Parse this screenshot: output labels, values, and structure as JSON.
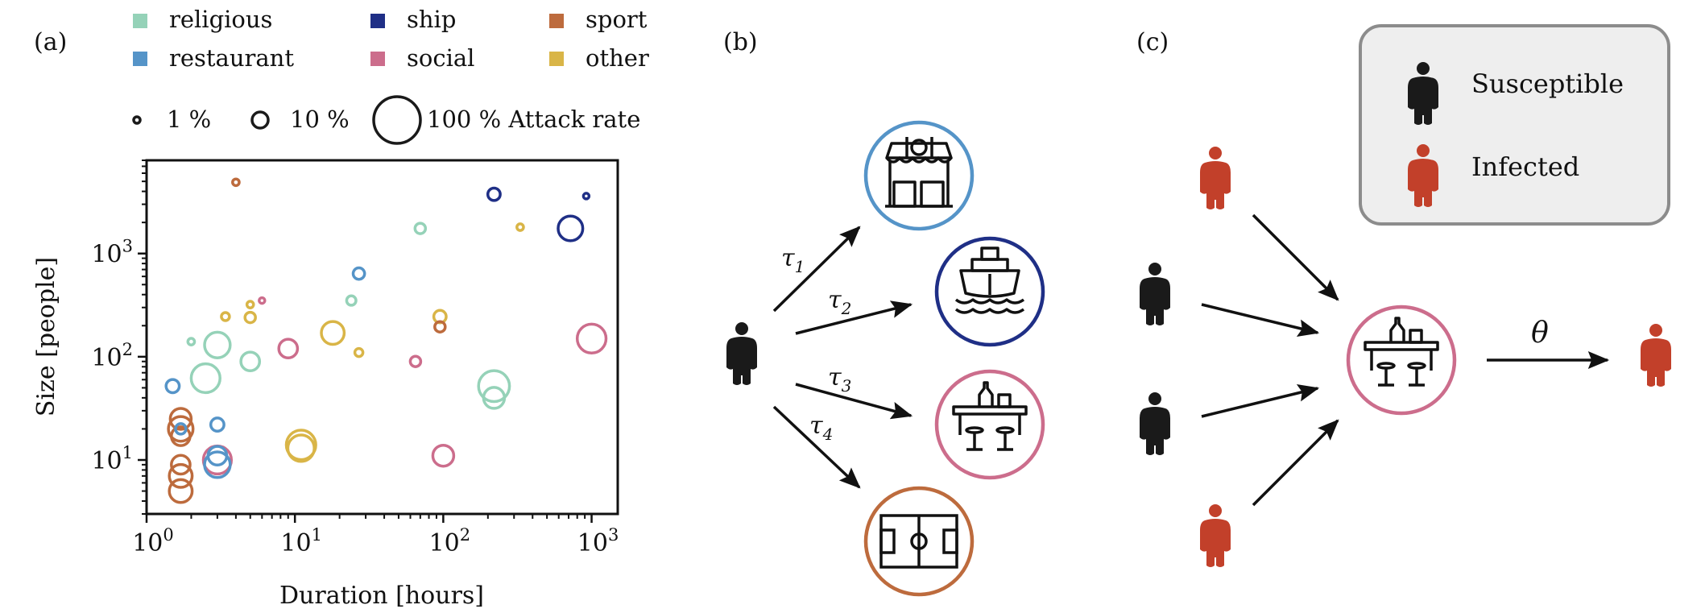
{
  "panels": {
    "a": {
      "label": "(a)"
    },
    "b": {
      "label": "(b)"
    },
    "c": {
      "label": "(c)"
    }
  },
  "legend_categories": [
    {
      "key": "religious",
      "label": "religious",
      "color": "#95d2b8"
    },
    {
      "key": "ship",
      "label": "ship",
      "color": "#1f2f86"
    },
    {
      "key": "sport",
      "label": "sport",
      "color": "#bd6b3d"
    },
    {
      "key": "restaurant",
      "label": "restaurant",
      "color": "#5594c8"
    },
    {
      "key": "social",
      "label": "social",
      "color": "#cc6d8c"
    },
    {
      "key": "other",
      "label": "other",
      "color": "#d9b547"
    }
  ],
  "size_legend": [
    {
      "value": 1,
      "label": "1 %"
    },
    {
      "value": 10,
      "label": "10 %"
    },
    {
      "value": 100,
      "label": "100 % Attack rate"
    }
  ],
  "chart_data": {
    "type": "scatter",
    "x_scale": "log",
    "y_scale": "log",
    "xlabel": "Duration [hours]",
    "ylabel": "Size [people]",
    "xlim": [
      1,
      1500
    ],
    "ylim": [
      3,
      8000
    ],
    "x_ticks": [
      {
        "value": 1,
        "base": "10",
        "exp": "0"
      },
      {
        "value": 10,
        "base": "10",
        "exp": "1"
      },
      {
        "value": 100,
        "base": "10",
        "exp": "2"
      },
      {
        "value": 1000,
        "base": "10",
        "exp": "3"
      }
    ],
    "y_ticks": [
      {
        "value": 10,
        "base": "10",
        "exp": "1"
      },
      {
        "value": 100,
        "base": "10",
        "exp": "2"
      },
      {
        "value": 1000,
        "base": "10",
        "exp": "3"
      }
    ],
    "size_encoding": "attack rate (%)",
    "points": [
      {
        "category": "sport",
        "x": 4,
        "y": 4900,
        "attack_rate": 2
      },
      {
        "category": "ship",
        "x": 220,
        "y": 3750,
        "attack_rate": 7
      },
      {
        "category": "ship",
        "x": 920,
        "y": 3600,
        "attack_rate": 1
      },
      {
        "category": "religious",
        "x": 70,
        "y": 1750,
        "attack_rate": 5
      },
      {
        "category": "other",
        "x": 330,
        "y": 1800,
        "attack_rate": 2
      },
      {
        "category": "ship",
        "x": 720,
        "y": 1750,
        "attack_rate": 28
      },
      {
        "category": "restaurant",
        "x": 27,
        "y": 640,
        "attack_rate": 6
      },
      {
        "category": "religious",
        "x": 24,
        "y": 350,
        "attack_rate": 4
      },
      {
        "category": "other",
        "x": 5,
        "y": 320,
        "attack_rate": 2
      },
      {
        "category": "social",
        "x": 6,
        "y": 350,
        "attack_rate": 1
      },
      {
        "category": "other",
        "x": 3.4,
        "y": 245,
        "attack_rate": 3
      },
      {
        "category": "other",
        "x": 5,
        "y": 240,
        "attack_rate": 5
      },
      {
        "category": "other",
        "x": 95,
        "y": 245,
        "attack_rate": 7
      },
      {
        "category": "sport",
        "x": 95,
        "y": 195,
        "attack_rate": 5
      },
      {
        "category": "other",
        "x": 18,
        "y": 170,
        "attack_rate": 24
      },
      {
        "category": "social",
        "x": 1000,
        "y": 150,
        "attack_rate": 38
      },
      {
        "category": "religious",
        "x": 2,
        "y": 140,
        "attack_rate": 2
      },
      {
        "category": "religious",
        "x": 3,
        "y": 130,
        "attack_rate": 30
      },
      {
        "category": "social",
        "x": 9,
        "y": 120,
        "attack_rate": 16
      },
      {
        "category": "other",
        "x": 27,
        "y": 110,
        "attack_rate": 3
      },
      {
        "category": "religious",
        "x": 5,
        "y": 90,
        "attack_rate": 16
      },
      {
        "category": "social",
        "x": 65,
        "y": 90,
        "attack_rate": 5
      },
      {
        "category": "religious",
        "x": 2.5,
        "y": 62,
        "attack_rate": 38
      },
      {
        "category": "religious",
        "x": 220,
        "y": 52,
        "attack_rate": 44
      },
      {
        "category": "restaurant",
        "x": 1.5,
        "y": 52,
        "attack_rate": 8
      },
      {
        "category": "religious",
        "x": 220,
        "y": 40,
        "attack_rate": 20
      },
      {
        "category": "sport",
        "x": 1.7,
        "y": 25,
        "attack_rate": 20
      },
      {
        "category": "sport",
        "x": 1.7,
        "y": 20,
        "attack_rate": 28
      },
      {
        "category": "sport",
        "x": 1.7,
        "y": 17,
        "attack_rate": 16
      },
      {
        "category": "restaurant",
        "x": 1.7,
        "y": 20,
        "attack_rate": 5
      },
      {
        "category": "restaurant",
        "x": 3,
        "y": 22,
        "attack_rate": 8
      },
      {
        "category": "other",
        "x": 11,
        "y": 14,
        "attack_rate": 40
      },
      {
        "category": "other",
        "x": 11,
        "y": 13,
        "attack_rate": 32
      },
      {
        "category": "social",
        "x": 3,
        "y": 10,
        "attack_rate": 36
      },
      {
        "category": "restaurant",
        "x": 3,
        "y": 11,
        "attack_rate": 16
      },
      {
        "category": "social",
        "x": 100,
        "y": 11,
        "attack_rate": 20
      },
      {
        "category": "restaurant",
        "x": 3,
        "y": 9,
        "attack_rate": 30
      },
      {
        "category": "sport",
        "x": 1.7,
        "y": 9,
        "attack_rate": 16
      },
      {
        "category": "sport",
        "x": 1.7,
        "y": 7,
        "attack_rate": 24
      },
      {
        "category": "sport",
        "x": 1.7,
        "y": 5,
        "attack_rate": 24
      }
    ]
  },
  "panel_b": {
    "taus": [
      {
        "symbol": "τ",
        "sub": "1"
      },
      {
        "symbol": "τ",
        "sub": "2"
      },
      {
        "symbol": "τ",
        "sub": "3"
      },
      {
        "symbol": "τ",
        "sub": "4"
      }
    ],
    "venues": [
      {
        "name": "restaurant",
        "icon": "restaurant-storefront-icon",
        "color": "#5594c8"
      },
      {
        "name": "ship",
        "icon": "cruise-ship-icon",
        "color": "#1f2f86"
      },
      {
        "name": "social",
        "icon": "bar-counter-icon",
        "color": "#cc6d8c"
      },
      {
        "name": "sport",
        "icon": "soccer-field-icon",
        "color": "#bd6b3d"
      }
    ]
  },
  "panel_c": {
    "legend": {
      "susceptible": "Susceptible",
      "infected": "Infected"
    },
    "theta": "θ",
    "colors": {
      "susceptible": "#1a1a1a",
      "infected": "#c2402a"
    },
    "venue_color": "#cc6d8c"
  }
}
